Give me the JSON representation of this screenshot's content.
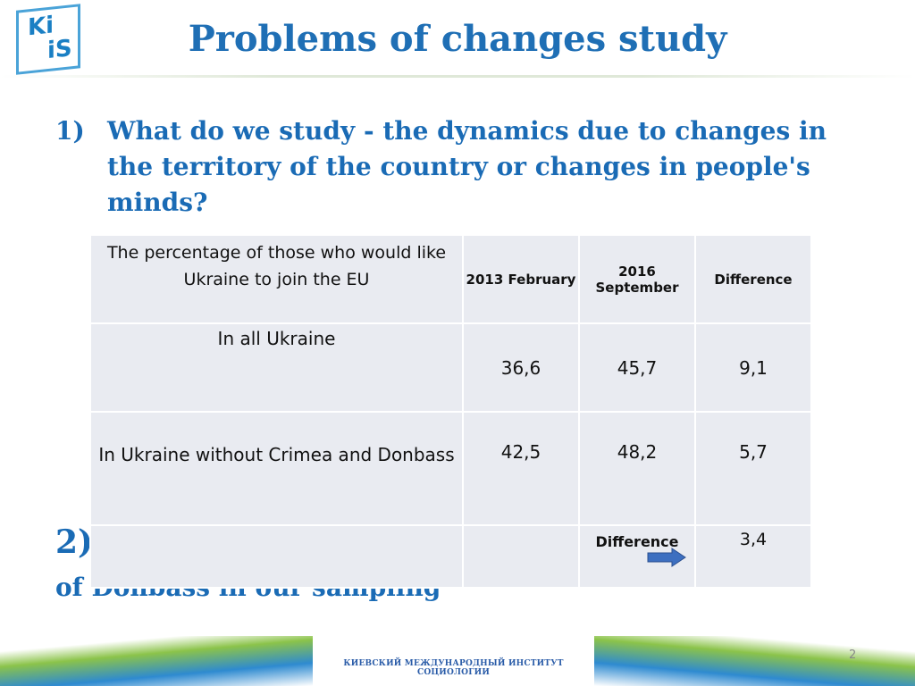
{
  "header": {
    "logo": [
      "Ki",
      "iS"
    ],
    "title": "Problems of changes study"
  },
  "points": [
    {
      "number": "1)",
      "text": "What do we study - the dynamics due to changes in the territory of the country or changes in people's minds?"
    },
    {
      "number": "2)",
      "text": "The problem of migration accounting and weight of Donbass in our sampling"
    }
  ],
  "table": {
    "header": [
      "The percentage of those who would like Ukraine to join the EU",
      "2013 February",
      "2016 September",
      "Difference"
    ],
    "rows": [
      [
        "In all Ukraine",
        "36,6",
        "45,7",
        "9,1"
      ],
      [
        "In Ukraine without Crimea and Donbass",
        "42,5",
        "48,2",
        "5,7"
      ]
    ],
    "difference_row": {
      "label": "Difference",
      "value": "3,4"
    }
  },
  "footer": {
    "institute": "КИЕВСКИЙ МЕЖДУНАРОДНЫЙ ИНСТИТУТ СОЦИОЛОГИИ",
    "page": "2"
  }
}
